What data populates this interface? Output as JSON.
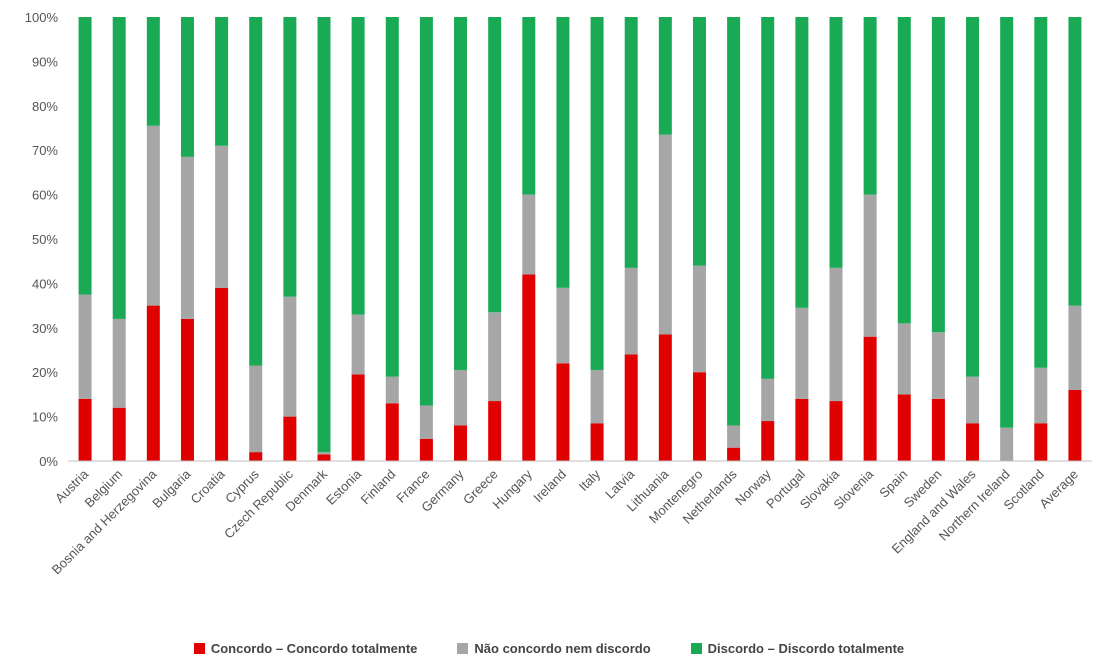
{
  "chart_data": {
    "type": "bar",
    "stacked": true,
    "percent": true,
    "ylim": [
      0,
      100
    ],
    "yticks": [
      "0%",
      "10%",
      "20%",
      "30%",
      "40%",
      "50%",
      "60%",
      "70%",
      "80%",
      "90%",
      "100%"
    ],
    "grid": false,
    "legend_position": "bottom",
    "categories": [
      "Austria",
      "Belgium",
      "Bosnia and Herzegovina",
      "Bulgaria",
      "Croatia",
      "Cyprus",
      "Czech Republic",
      "Denmark",
      "Estonia",
      "Finland",
      "France",
      "Germany",
      "Greece",
      "Hungary",
      "Ireland",
      "Italy",
      "Latvia",
      "Lithuania",
      "Montenegro",
      "Netherlands",
      "Norway",
      "Portugal",
      "Slovakia",
      "Slovenia",
      "Spain",
      "Sweden",
      "England and Wales",
      "Northern Ireland",
      "Scotland",
      "Average"
    ],
    "series": [
      {
        "name": "Concordo – Concordo totalmente",
        "color": "#e00000",
        "values": [
          14,
          12,
          35,
          32,
          39,
          2,
          10,
          1.5,
          19.5,
          13,
          5,
          8,
          13.5,
          42,
          22,
          8.5,
          24,
          28.5,
          20,
          3,
          9,
          14,
          13.5,
          28,
          15,
          14,
          8.5,
          0,
          8.5,
          16
        ]
      },
      {
        "name": "Não concordo nem discordo",
        "color": "#a6a6a6",
        "values": [
          23.5,
          20,
          40.5,
          36.5,
          32,
          19.5,
          27,
          0.5,
          13.5,
          6,
          7.5,
          12.5,
          20,
          18,
          17,
          12,
          19.5,
          45,
          24,
          5,
          9.5,
          20.5,
          30,
          32,
          16,
          15,
          10.5,
          7.5,
          12.5,
          19
        ]
      },
      {
        "name": "Discordo – Discordo totalmente",
        "color": "#1aaa55",
        "values": [
          62.5,
          68,
          24.5,
          31.5,
          29,
          78.5,
          63,
          98,
          67,
          81,
          87.5,
          79.5,
          66.5,
          40,
          61,
          79.5,
          56.5,
          26.5,
          56,
          92,
          81.5,
          65.5,
          56.5,
          40,
          69,
          71,
          81,
          92.5,
          79,
          65
        ]
      }
    ]
  }
}
